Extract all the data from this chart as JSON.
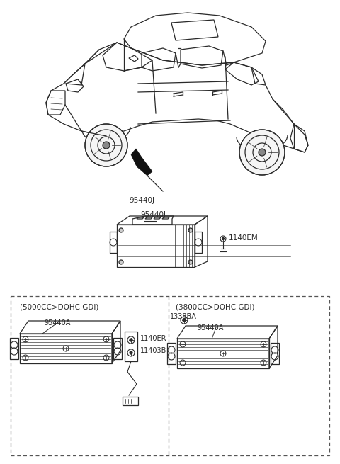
{
  "bg_color": "#ffffff",
  "lc": "#2a2a2a",
  "label_95440J": "95440J",
  "label_1140EM": "1140EM",
  "label_5000CC": "(5000CC>DOHC GDI)",
  "label_3800CC": "(3800CC>DOHC GDI)",
  "label_95440A_left": "95440A",
  "label_1140ER": "1140ER",
  "label_11403B": "11403B",
  "label_1338BA": "1338BA",
  "label_95440A_right": "95440A",
  "figsize": [
    4.8,
    6.55
  ],
  "dpi": 100
}
